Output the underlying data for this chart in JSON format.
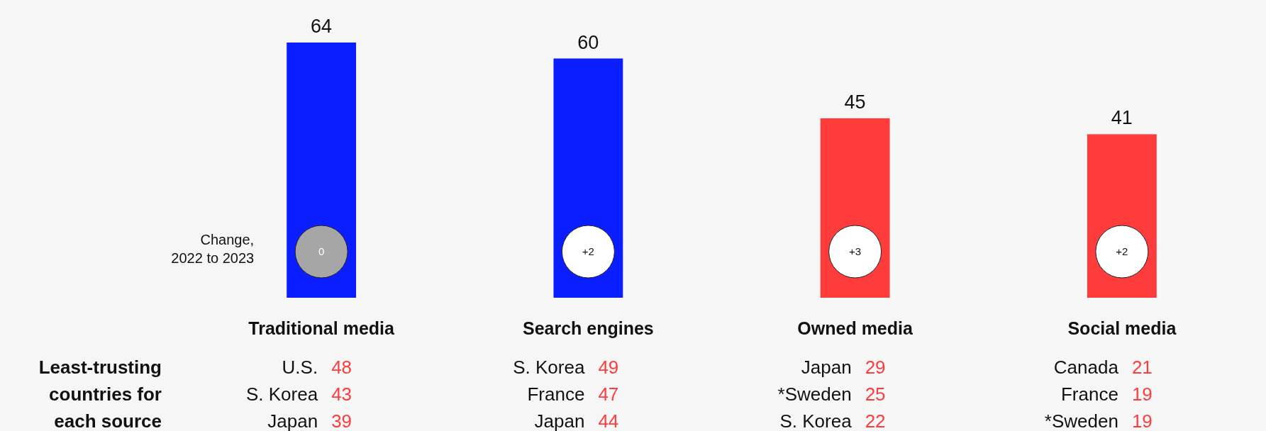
{
  "chart_data": {
    "type": "bar",
    "categories": [
      "Traditional media",
      "Search engines",
      "Owned media",
      "Social media"
    ],
    "values": [
      64,
      60,
      45,
      41
    ],
    "colors": [
      "#0a1eff",
      "#0a1eff",
      "#ff3c3c",
      "#ff3c3c"
    ],
    "data_labels": true,
    "annotations": [
      "Change,\n2022 to 2023",
      "Least-trusting\ncountries for\neach source",
      "0",
      "+2",
      "+3",
      "+2",
      "U.S. 48",
      "S. Korea 43",
      "Japan 39",
      "S. Korea 49",
      "France 47",
      "Japan 44",
      "Japan 29",
      "*Sweden 25",
      "S. Korea 22",
      "Canada 21",
      "France 19",
      "*Sweden 19"
    ]
  }
}
